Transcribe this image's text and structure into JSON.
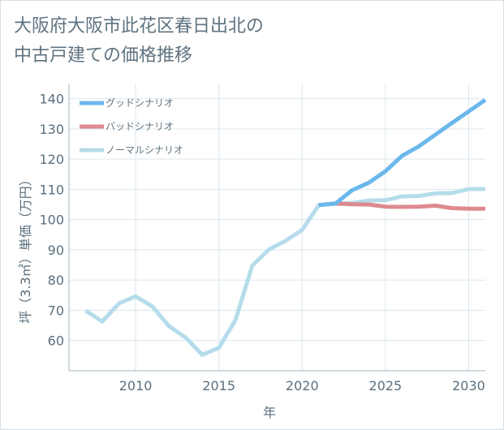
{
  "title": {
    "line1": "大阪府大阪市此花区春日出北の",
    "line2": "中古戸建ての価格推移"
  },
  "chart_data": {
    "type": "line",
    "title": "大阪府大阪市此花区春日出北の中古戸建ての価格推移",
    "xlabel": "年",
    "ylabel": "坪（3.3㎡）単価（万円）",
    "xlim": [
      2006,
      2031
    ],
    "ylim": [
      50,
      145
    ],
    "x_ticks": [
      2010,
      2015,
      2020,
      2025,
      2030
    ],
    "y_ticks": [
      60,
      70,
      80,
      90,
      100,
      110,
      120,
      130,
      140
    ],
    "grid": true,
    "legend_position": "top-left",
    "series": [
      {
        "name": "グッドシナリオ",
        "color": "#6bb8ec",
        "x": [
          2021,
          2022,
          2023,
          2024,
          2025,
          2026,
          2027,
          2028,
          2029,
          2030,
          2031
        ],
        "y": [
          104.8,
          105.3,
          109.7,
          112.2,
          116.0,
          121.1,
          124.2,
          128.1,
          132.0,
          135.8,
          139.6
        ]
      },
      {
        "name": "バッドシナリオ",
        "color": "#dd8a8f",
        "x": [
          2021,
          2022,
          2023,
          2024,
          2025,
          2026,
          2027,
          2028,
          2029,
          2030,
          2031
        ],
        "y": [
          104.8,
          105.3,
          105.1,
          105.0,
          104.3,
          104.2,
          104.3,
          104.6,
          103.8,
          103.6,
          103.6
        ]
      },
      {
        "name": "ノーマルシナリオ",
        "color": "#b5dcea",
        "x": [
          2007,
          2008,
          2009,
          2010,
          2011,
          2012,
          2013,
          2014,
          2015,
          2016,
          2017,
          2018,
          2019,
          2020,
          2021,
          2022,
          2023,
          2024,
          2025,
          2026,
          2027,
          2028,
          2029,
          2030,
          2031
        ],
        "y": [
          69.9,
          66.3,
          72.3,
          74.6,
          71.3,
          64.8,
          61.0,
          55.3,
          57.6,
          66.8,
          84.7,
          90.1,
          93.0,
          96.6,
          104.8,
          105.3,
          105.5,
          106.3,
          106.4,
          107.7,
          107.8,
          108.7,
          108.8,
          110.1,
          110.1
        ]
      }
    ]
  }
}
